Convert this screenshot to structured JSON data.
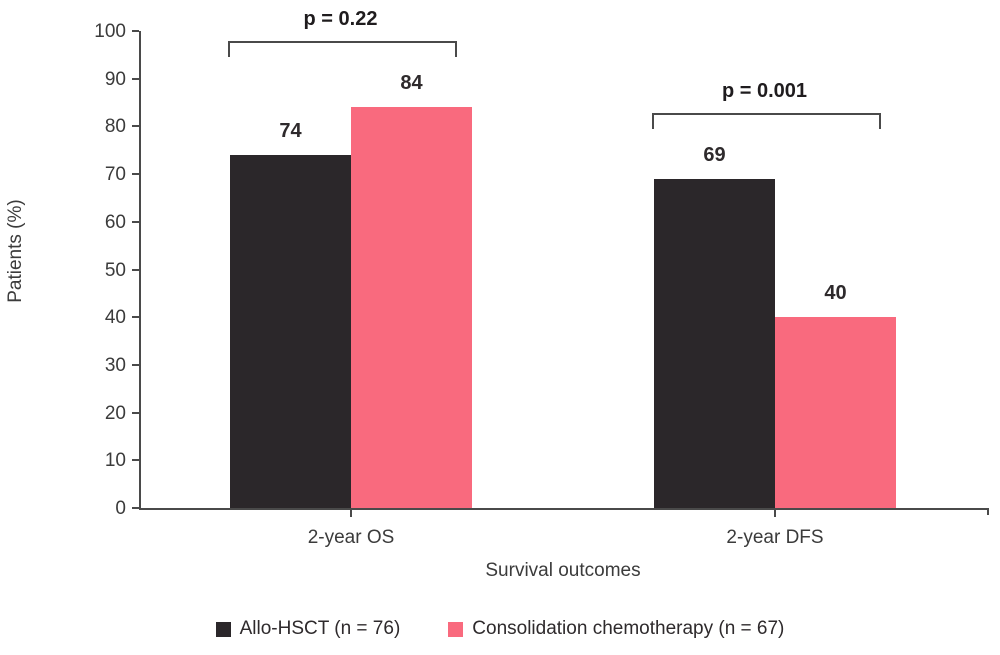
{
  "figure": {
    "background": "#FFFFFF",
    "axis_color": "#4A4A4A",
    "text_color": "#3B3B3B"
  },
  "chart_data": {
    "type": "bar",
    "categories": [
      "2-year OS",
      "2-year DFS"
    ],
    "series": [
      {
        "name": "Allo-HSCT (n = 76)",
        "color": "#2B272A",
        "values": [
          74,
          69
        ]
      },
      {
        "name": "Consolidation chemotherapy (n = 67)",
        "color": "#F96A7E",
        "values": [
          84,
          40
        ]
      }
    ],
    "annotations": [
      {
        "category": "2-year OS",
        "label": "p = 0.22"
      },
      {
        "category": "2-year DFS",
        "label": "p = 0.001"
      }
    ],
    "xlabel": "Survival outcomes",
    "ylabel": "Patients (%)",
    "ylim": [
      0,
      100
    ],
    "yticks": [
      0,
      10,
      20,
      30,
      40,
      50,
      60,
      70,
      80,
      90,
      100
    ],
    "grid": false,
    "legend_position": "bottom",
    "value_labels_shown": true
  }
}
